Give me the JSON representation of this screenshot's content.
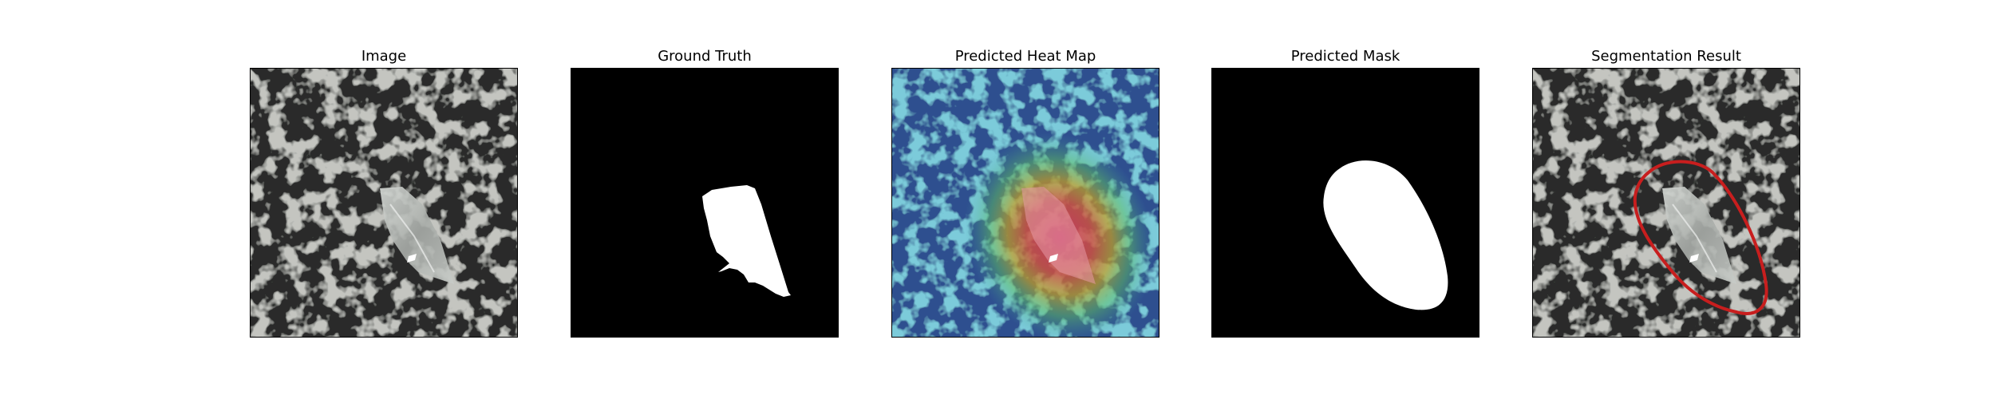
{
  "panels": [
    {
      "title": "Image"
    },
    {
      "title": "Ground Truth"
    },
    {
      "title": "Predicted Heat Map"
    },
    {
      "title": "Predicted Mask"
    },
    {
      "title": "Segmentation Result"
    }
  ],
  "colors": {
    "background_texture_light": "#8a8e88",
    "background_texture_dark": "#2a2c2a",
    "mask_foreground": "#ffffff",
    "mask_background": "#000000",
    "contour": "#c81e1e"
  }
}
